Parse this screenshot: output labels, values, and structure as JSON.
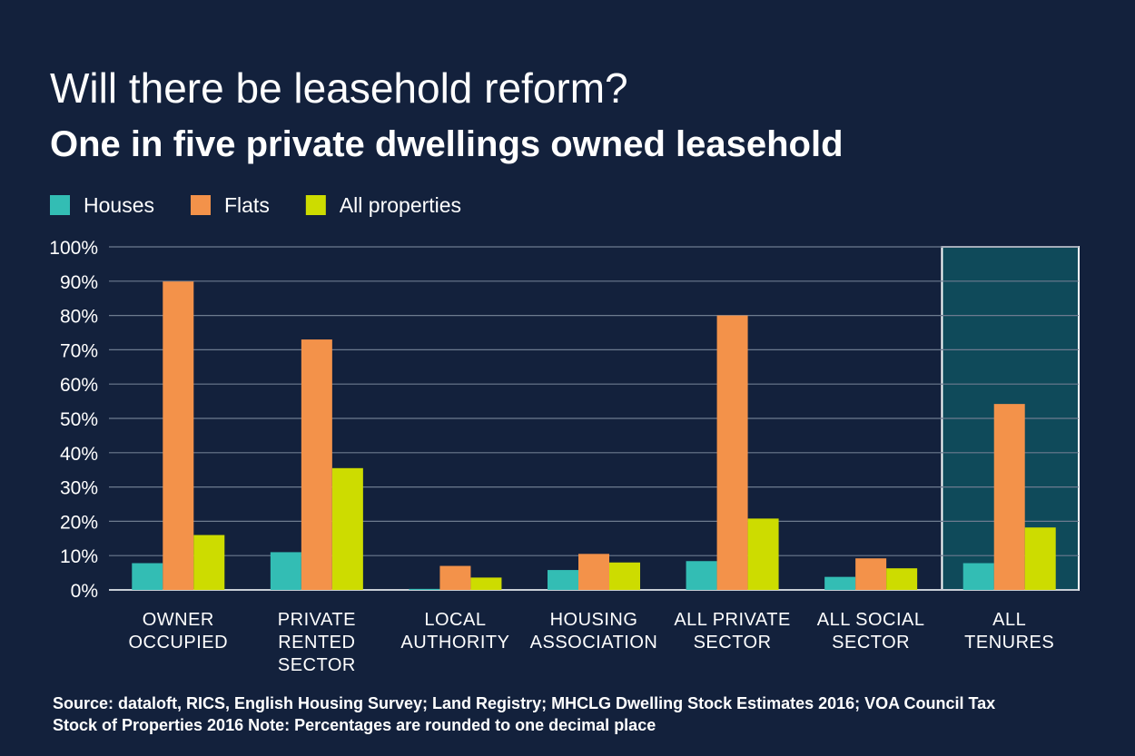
{
  "chart_data": {
    "type": "bar",
    "title": "Will there be leasehold reform?",
    "subtitle": "One in five private dwellings owned leasehold",
    "categories": [
      "OWNER\nOCCUPIED",
      "PRIVATE\nRENTED\nSECTOR",
      "LOCAL\nAUTHORITY",
      "HOUSING\nASSOCIATION",
      "ALL PRIVATE\nSECTOR",
      "ALL SOCIAL\nSECTOR",
      "ALL\nTENURES"
    ],
    "series": [
      {
        "name": "Houses",
        "color": "#33bdb4",
        "values": [
          7.8,
          11.0,
          0.3,
          5.8,
          8.4,
          3.8,
          7.8
        ]
      },
      {
        "name": "Flats",
        "color": "#f3924a",
        "values": [
          89.9,
          73.0,
          7.0,
          10.5,
          80.0,
          9.2,
          54.2
        ]
      },
      {
        "name": "All properties",
        "color": "#cddc00",
        "values": [
          16.0,
          35.5,
          3.6,
          8.0,
          20.8,
          6.3,
          18.2
        ]
      }
    ],
    "ylim": [
      0,
      100
    ],
    "yticks": [
      {
        "value": 0,
        "label": "0%"
      },
      {
        "value": 10,
        "label": "10%"
      },
      {
        "value": 20,
        "label": "20%"
      },
      {
        "value": 30,
        "label": "30%"
      },
      {
        "value": 40,
        "label": "40%"
      },
      {
        "value": 50,
        "label": "50%"
      },
      {
        "value": 60,
        "label": "60%"
      },
      {
        "value": 70,
        "label": "70%"
      },
      {
        "value": 80,
        "label": "80%"
      },
      {
        "value": 90,
        "label": "90%"
      },
      {
        "value": 100,
        "label": "100%"
      }
    ],
    "grid": true,
    "legend": "top-left",
    "highlight_category": "ALL\nTENURES",
    "source": "Source: dataloft, RICS, English Housing Survey; Land Registry; MHCLG Dwelling Stock Estimates 2016; VOA Council Tax\nStock of Properties 2016 Note: Percentages are rounded to one decimal place"
  }
}
